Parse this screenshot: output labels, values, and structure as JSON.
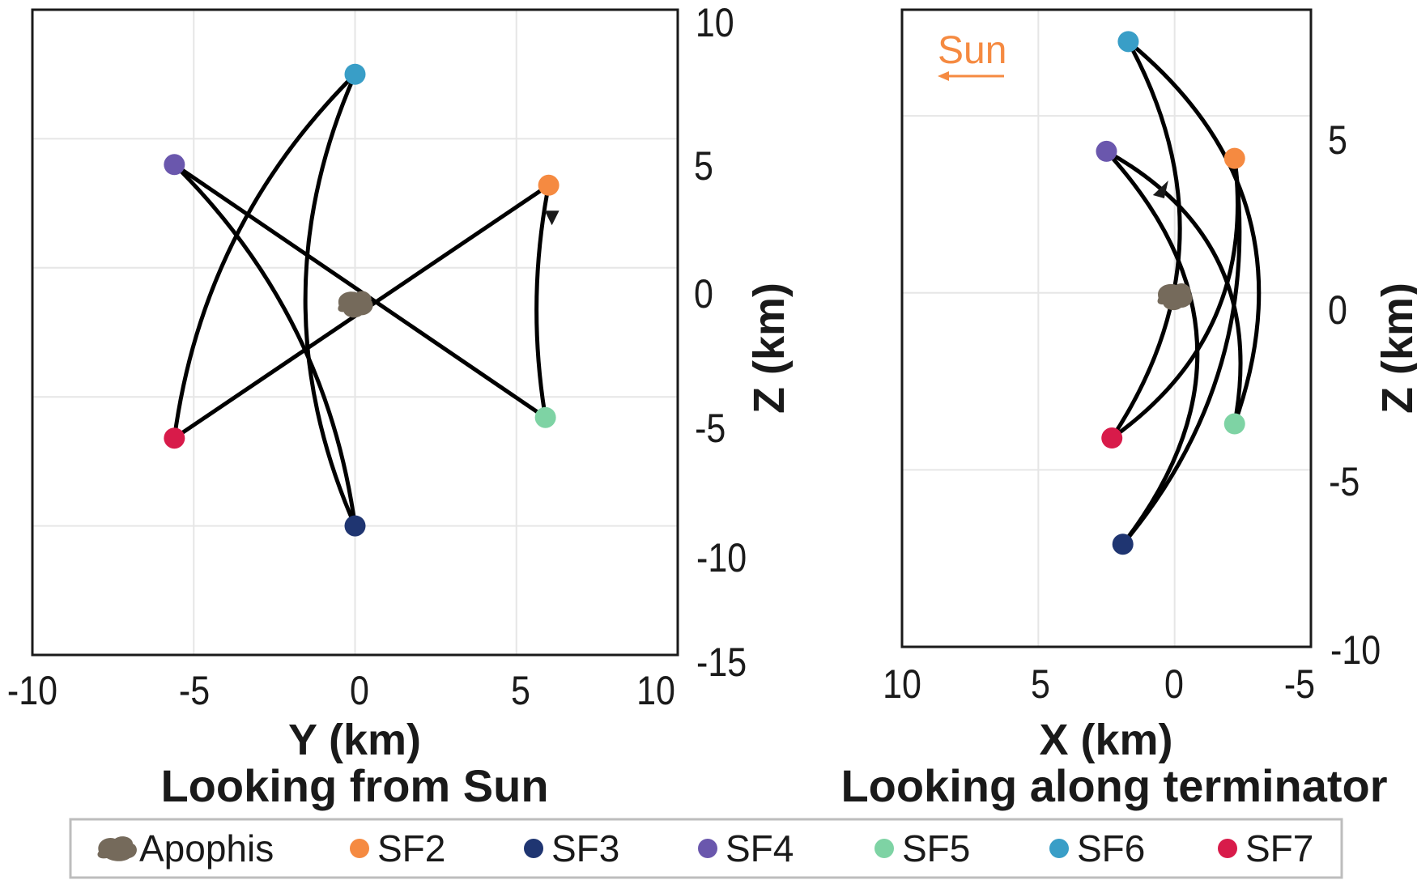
{
  "chart_data": [
    {
      "type": "line",
      "id": "left",
      "title": "Looking from Sun",
      "xlabel": "Y (km)",
      "ylabel": "Z (km)",
      "xlim": [
        -10,
        10
      ],
      "ylim": [
        -15,
        10
      ],
      "xticks": [
        "-10",
        "-5",
        "0",
        "5",
        "10"
      ],
      "xtick_values": [
        -10,
        -5,
        0,
        5,
        10
      ],
      "yticks": [
        "10",
        "5",
        "0",
        "-5",
        "-10",
        "-15"
      ],
      "ytick_values": [
        10,
        5,
        0,
        -5,
        -10,
        -15
      ],
      "apophis": [
        0,
        -1.4
      ],
      "stations": {
        "SF2": [
          6.0,
          3.2
        ],
        "SF3": [
          0.0,
          -10.0
        ],
        "SF4": [
          -5.6,
          4.0
        ],
        "SF5": [
          5.9,
          -5.8
        ],
        "SF6": [
          0.0,
          7.5
        ],
        "SF7": [
          -5.6,
          -6.6
        ]
      },
      "segments": [
        {
          "from": "SF2",
          "to": "SF5",
          "curv": 0.09
        },
        {
          "from": "SF5",
          "to": "SF4",
          "curv": 0.0
        },
        {
          "from": "SF4",
          "to": "SF3",
          "curv": -0.17
        },
        {
          "from": "SF3",
          "to": "SF6",
          "curv": -0.22
        },
        {
          "from": "SF6",
          "to": "SF7",
          "curv": 0.17
        },
        {
          "from": "SF7",
          "to": "SF2",
          "curv": 0.0
        }
      ],
      "arrow": [
        6.1,
        1.9
      ]
    },
    {
      "type": "line",
      "id": "right",
      "title": "Looking along terminator",
      "xlabel": "X (km)",
      "ylabel": "Z (km)",
      "xlim": [
        10,
        -5
      ],
      "ylim": [
        -10,
        8
      ],
      "xticks": [
        "10",
        "5",
        "0",
        "-5"
      ],
      "xtick_values": [
        10,
        5,
        0,
        -5
      ],
      "yticks": [
        "5",
        "0",
        "-5",
        "-10"
      ],
      "ytick_values": [
        5,
        0,
        -5,
        -10
      ],
      "annotation": "Sun",
      "apophis": [
        0,
        -0.1
      ],
      "stations": {
        "SF2": [
          -2.2,
          3.8
        ],
        "SF3": [
          1.9,
          -7.1
        ],
        "SF4": [
          2.5,
          4.0
        ],
        "SF5": [
          -2.2,
          -3.7
        ],
        "SF6": [
          1.7,
          7.1
        ],
        "SF7": [
          2.3,
          -4.1
        ]
      },
      "segments": [
        {
          "from": "SF6",
          "to": "SF5",
          "curv": -0.35
        },
        {
          "from": "SF6",
          "to": "SF7",
          "curv": -0.3
        },
        {
          "from": "SF4",
          "to": "SF3",
          "curv": -0.42
        },
        {
          "from": "SF4",
          "to": "SF5",
          "curv": -0.36
        },
        {
          "from": "SF2",
          "to": "SF7",
          "curv": -0.3
        },
        {
          "from": "SF2",
          "to": "SF3",
          "curv": -0.22
        }
      ],
      "arrow": [
        0.5,
        2.9
      ]
    }
  ],
  "legend": {
    "items": [
      {
        "label": "Apophis",
        "color": "#756a5b"
      },
      {
        "label": "SF2",
        "color": "#f58a41"
      },
      {
        "label": "SF3",
        "color": "#1f3571"
      },
      {
        "label": "SF4",
        "color": "#6a57ad"
      },
      {
        "label": "SF5",
        "color": "#7ed3a4"
      },
      {
        "label": "SF6",
        "color": "#399ec7"
      },
      {
        "label": "SF7",
        "color": "#d81b4a"
      }
    ]
  },
  "colors": {
    "sun": "#f58a41",
    "trajectory": "#000000",
    "apophis": "#756a5b"
  }
}
